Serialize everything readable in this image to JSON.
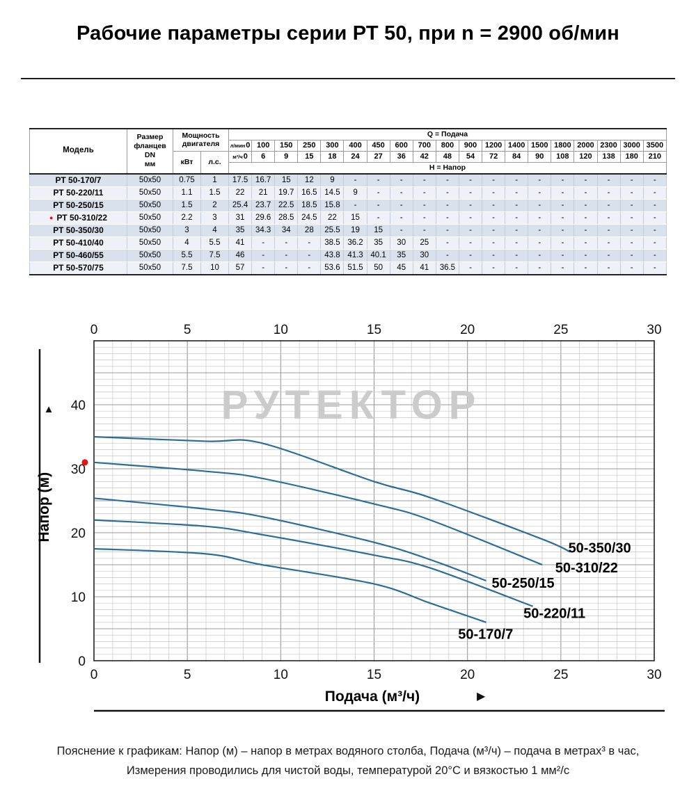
{
  "title": "Рабочие параметры серии РТ 50, при n = 2900 об/мин",
  "table": {
    "headers": {
      "model": "Модель",
      "flange_line1": "Размер фланцев",
      "flange_line2": "DN",
      "flange_line3": "мм",
      "power": "Мощность двигателя",
      "kw": "кВт",
      "hp": "л.с.",
      "q_label": "Q = Подача",
      "h_label": "Н = Напор",
      "lmin_label": "л/мин",
      "m3h_label": "м³/ч",
      "lmin": [
        "0",
        "100",
        "150",
        "250",
        "300",
        "400",
        "450",
        "600",
        "700",
        "800",
        "900",
        "1200",
        "1400",
        "1500",
        "1800",
        "2000",
        "2300",
        "3000",
        "3500"
      ],
      "m3h": [
        "0",
        "6",
        "9",
        "15",
        "18",
        "24",
        "27",
        "36",
        "42",
        "48",
        "54",
        "72",
        "84",
        "90",
        "108",
        "120",
        "138",
        "180",
        "210"
      ]
    },
    "rows": [
      {
        "model": "РТ 50-170/7",
        "marked": false,
        "flange": "50х50",
        "kw": "0.75",
        "hp": "1",
        "values": [
          "17.5",
          "16.7",
          "15",
          "12",
          "9",
          "-",
          "-",
          "-",
          "-",
          "-",
          "-",
          "-",
          "-",
          "-",
          "-",
          "-",
          "-",
          "-",
          "-"
        ]
      },
      {
        "model": "РТ 50-220/11",
        "marked": false,
        "flange": "50х50",
        "kw": "1.1",
        "hp": "1.5",
        "values": [
          "22",
          "21",
          "19.7",
          "16.5",
          "14.5",
          "9",
          "-",
          "-",
          "-",
          "-",
          "-",
          "-",
          "-",
          "-",
          "-",
          "-",
          "-",
          "-",
          "-"
        ]
      },
      {
        "model": "РТ 50-250/15",
        "marked": false,
        "flange": "50х50",
        "kw": "1.5",
        "hp": "2",
        "values": [
          "25.4",
          "23.7",
          "22.5",
          "18.5",
          "15.8",
          "-",
          "-",
          "-",
          "-",
          "-",
          "-",
          "-",
          "-",
          "-",
          "-",
          "-",
          "-",
          "-",
          "-"
        ]
      },
      {
        "model": "РТ 50-310/22",
        "marked": true,
        "flange": "50х50",
        "kw": "2.2",
        "hp": "3",
        "values": [
          "31",
          "29.6",
          "28.5",
          "24.5",
          "22",
          "15",
          "-",
          "-",
          "-",
          "-",
          "-",
          "-",
          "-",
          "-",
          "-",
          "-",
          "-",
          "-",
          "-"
        ]
      },
      {
        "model": "РТ 50-350/30",
        "marked": false,
        "flange": "50х50",
        "kw": "3",
        "hp": "4",
        "values": [
          "35",
          "34.3",
          "34",
          "28",
          "25.5",
          "19",
          "15",
          "-",
          "-",
          "-",
          "-",
          "-",
          "-",
          "-",
          "-",
          "-",
          "-",
          "-",
          "-"
        ]
      },
      {
        "model": "РТ 50-410/40",
        "marked": false,
        "flange": "50х50",
        "kw": "4",
        "hp": "5.5",
        "values": [
          "41",
          "-",
          "-",
          "-",
          "38.5",
          "36.2",
          "35",
          "30",
          "25",
          "-",
          "-",
          "-",
          "-",
          "-",
          "-",
          "-",
          "-",
          "-",
          "-"
        ]
      },
      {
        "model": "РТ 50-460/55",
        "marked": false,
        "flange": "50х50",
        "kw": "5.5",
        "hp": "7.5",
        "values": [
          "46",
          "-",
          "-",
          "-",
          "43.8",
          "41.3",
          "40.1",
          "35",
          "30",
          "-",
          "-",
          "-",
          "-",
          "-",
          "-",
          "-",
          "-",
          "-",
          "-"
        ]
      },
      {
        "model": "РТ 50-570/75",
        "marked": false,
        "flange": "50х50",
        "kw": "7.5",
        "hp": "10",
        "values": [
          "57",
          "-",
          "-",
          "-",
          "53.6",
          "51.5",
          "50",
          "45",
          "41",
          "36.5",
          "-",
          "-",
          "-",
          "-",
          "-",
          "-",
          "-",
          "-",
          "-"
        ]
      }
    ]
  },
  "chart_data": {
    "type": "line",
    "xlabel": "Подача (м³/ч)",
    "ylabel": "Напор (м)",
    "xlim": [
      0,
      30
    ],
    "ylim": [
      0,
      50
    ],
    "xticks": [
      0,
      5,
      10,
      15,
      20,
      25,
      30
    ],
    "yticks": [
      0,
      10,
      20,
      30,
      40
    ],
    "grid": "minor every 1 unit, major every 5 units",
    "legend_position": "labels at curve ends",
    "watermark": "РУТЕКТОР",
    "line_color": "#2a6d99",
    "marker": {
      "x": 0,
      "y": 31,
      "color": "#e11414"
    },
    "icons": {
      "up_arrow": "▲",
      "right_arrow": "▶"
    },
    "series": [
      {
        "name": "50-170/7",
        "points": [
          [
            0,
            17.5
          ],
          [
            6,
            16.7
          ],
          [
            9,
            15
          ],
          [
            15,
            12
          ],
          [
            18,
            9
          ],
          [
            21,
            6
          ]
        ],
        "label_pos": [
          19.5,
          3.4
        ]
      },
      {
        "name": "50-220/11",
        "points": [
          [
            0,
            22
          ],
          [
            6,
            21
          ],
          [
            9,
            19.7
          ],
          [
            15,
            16.5
          ],
          [
            18,
            14.5
          ],
          [
            23.5,
            8.5
          ]
        ],
        "label_pos": [
          23.0,
          6.7
        ]
      },
      {
        "name": "50-250/15",
        "points": [
          [
            0,
            25.4
          ],
          [
            6,
            23.7
          ],
          [
            9,
            22.5
          ],
          [
            15,
            18.5
          ],
          [
            18,
            15.8
          ],
          [
            21,
            12.5
          ]
        ],
        "label_pos": [
          21.3,
          11.4
        ]
      },
      {
        "name": "50-310/22",
        "points": [
          [
            0,
            31
          ],
          [
            6,
            29.6
          ],
          [
            9,
            28.5
          ],
          [
            15,
            24.5
          ],
          [
            18,
            22
          ],
          [
            24,
            15
          ]
        ],
        "label_pos": [
          24.7,
          13.8
        ]
      },
      {
        "name": "50-350/30",
        "points": [
          [
            0,
            35
          ],
          [
            6,
            34.3
          ],
          [
            9,
            34
          ],
          [
            15,
            28
          ],
          [
            18,
            25.5
          ],
          [
            24,
            19
          ],
          [
            25.5,
            17
          ]
        ],
        "label_pos": [
          25.4,
          16.9
        ]
      }
    ]
  },
  "footnote": {
    "line1": "Пояснение к графикам: Напор (м) – напор в метрах водяного столба, Подача (м³/ч) – подача в метрах³ в час,",
    "line2": "Измерения проводились для чистой воды, температурой 20°С и вязкостью 1 мм²/с"
  }
}
